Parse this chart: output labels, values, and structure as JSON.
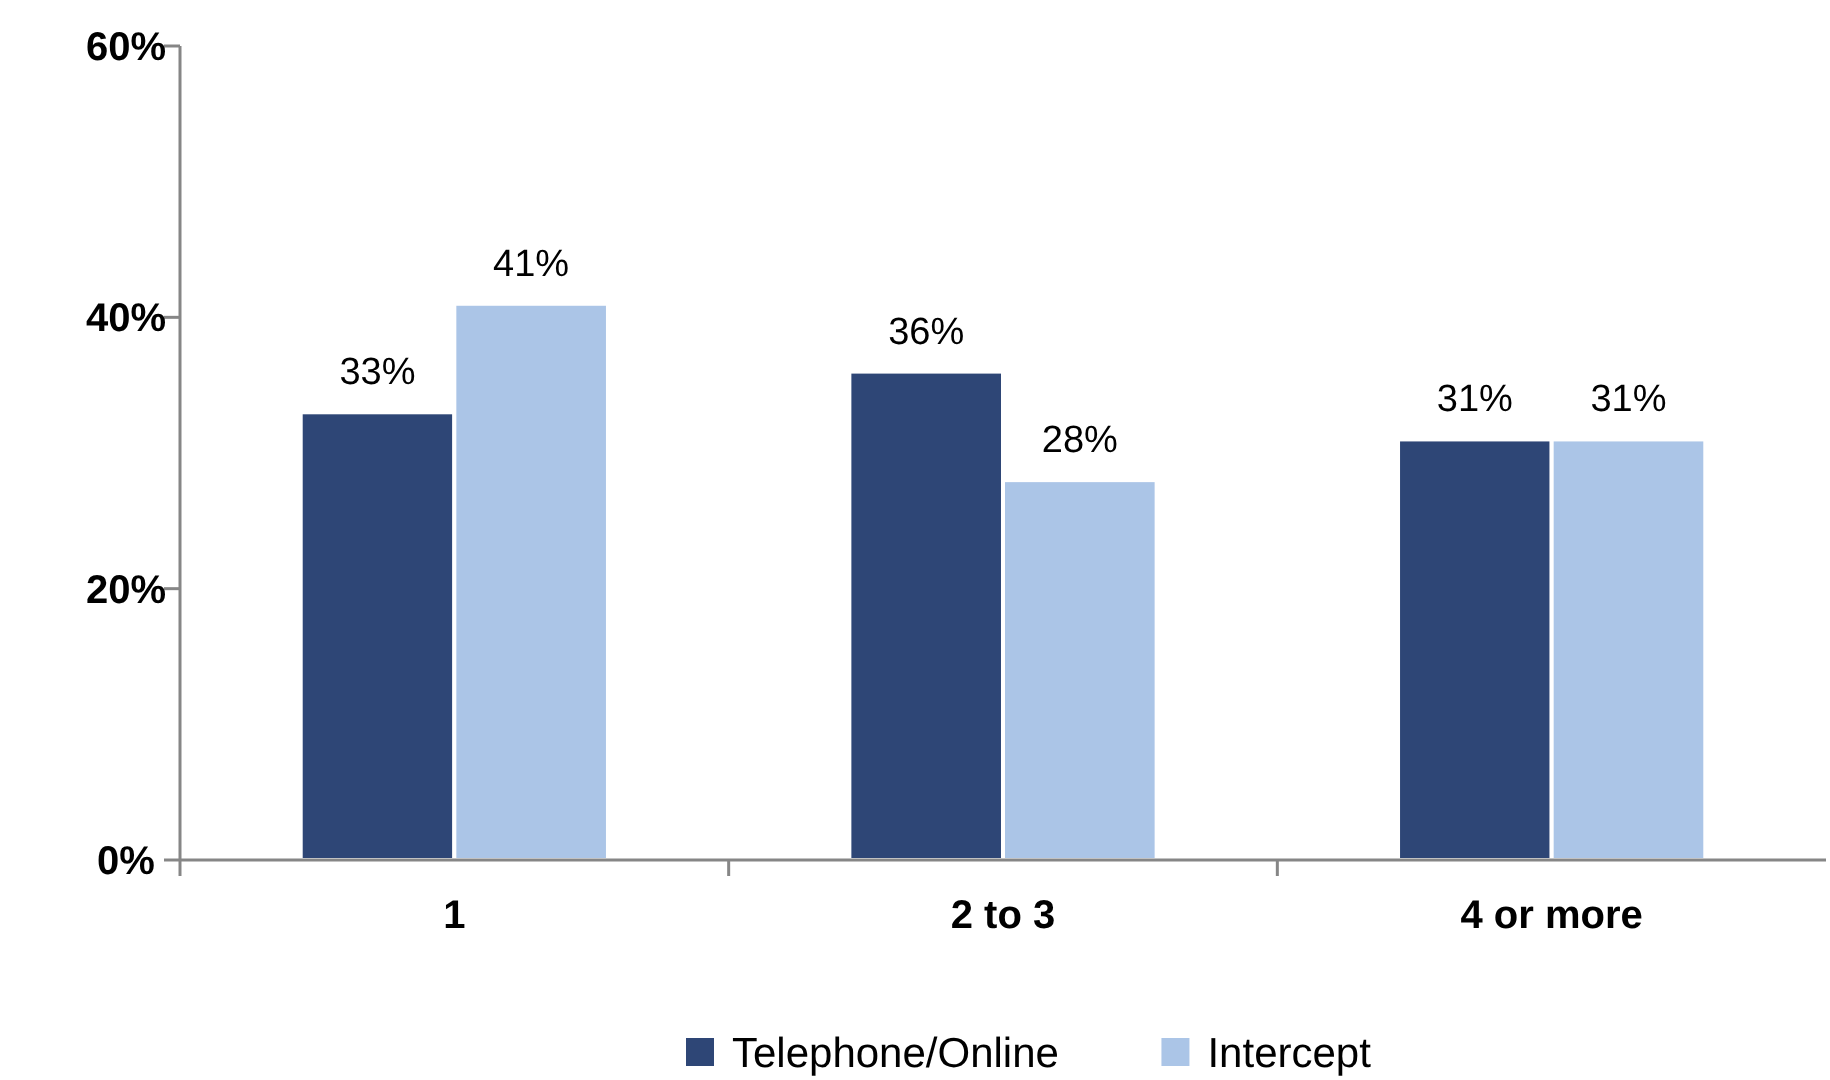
{
  "chart_data": {
    "type": "bar",
    "categories": [
      "1",
      "2 to 3",
      "4 or more"
    ],
    "series": [
      {
        "name": "Telephone/Online",
        "color": "#2e4676",
        "values": [
          33,
          36,
          31
        ],
        "value_labels": [
          "33%",
          "36%",
          "31%"
        ]
      },
      {
        "name": "Intercept",
        "color": "#abc5e7",
        "values": [
          41,
          28,
          31
        ],
        "value_labels": [
          "41%",
          "28%",
          "31%"
        ]
      }
    ],
    "ylim": [
      0,
      60
    ],
    "yticks": [
      {
        "value": 0,
        "label": "0%"
      },
      {
        "value": 20,
        "label": "20%"
      },
      {
        "value": 40,
        "label": "40%"
      },
      {
        "value": 60,
        "label": "60%"
      }
    ],
    "legend": "bottom"
  }
}
